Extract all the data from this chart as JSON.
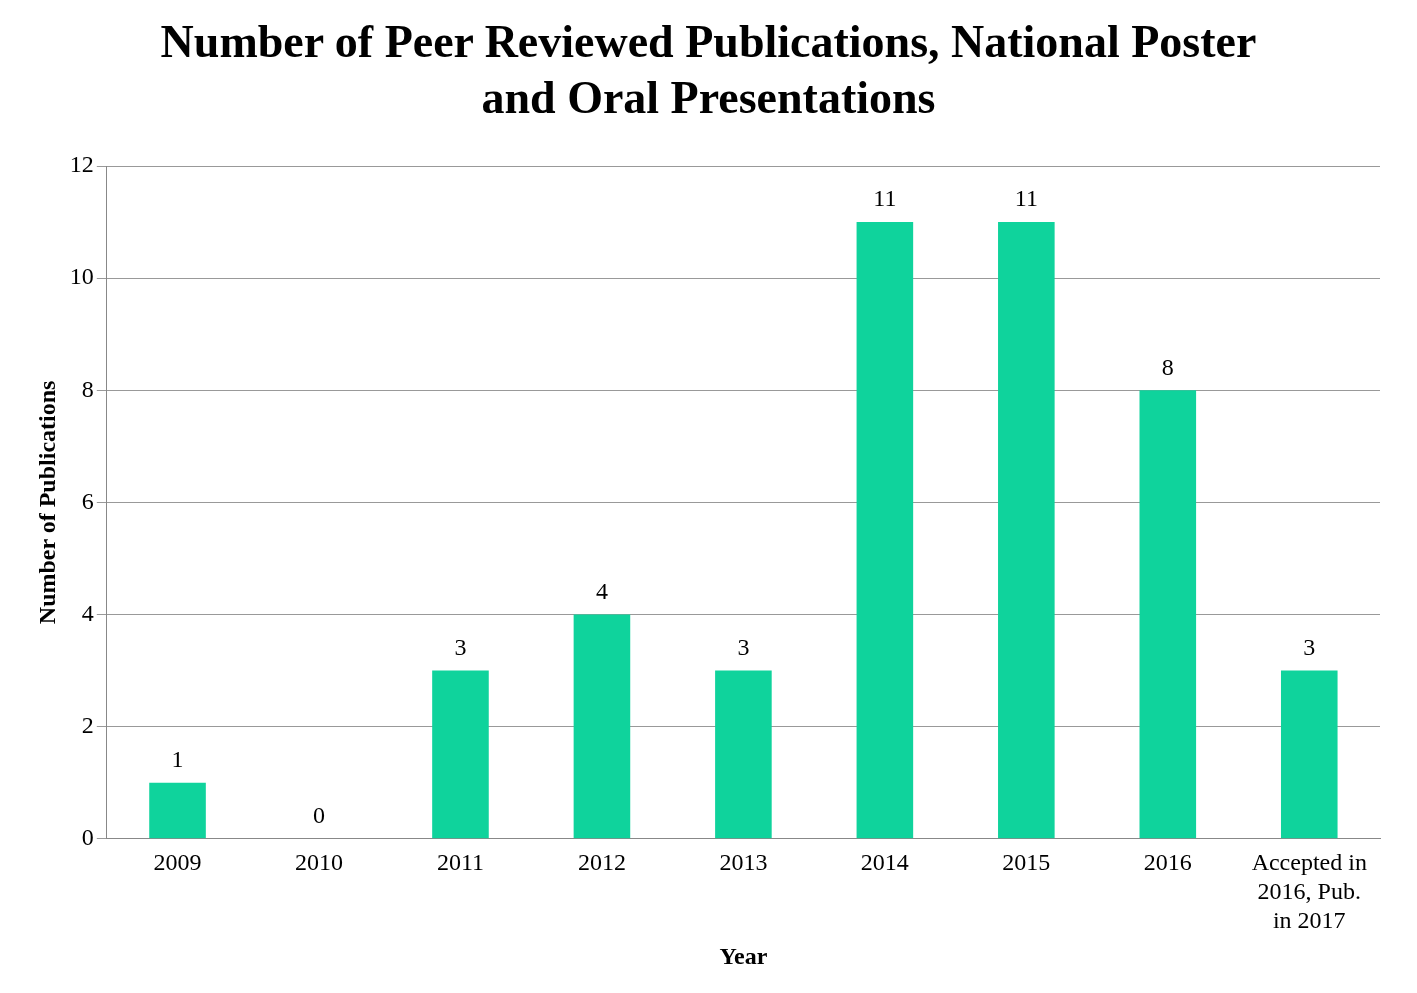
{
  "chart_data": {
    "type": "bar",
    "title": "Number of Peer Reviewed Publications, National Poster and Oral Presentations",
    "xlabel": "Year",
    "ylabel": "Number of Publications",
    "categories": [
      "2009",
      "2010",
      "2011",
      "2012",
      "2013",
      "2014",
      "2015",
      "2016",
      "Accepted in 2016, Pub. in 2017"
    ],
    "values": [
      1,
      0,
      3,
      4,
      3,
      11,
      11,
      8,
      3
    ],
    "color": "#0fd39c",
    "ylim": [
      0,
      12
    ],
    "yticks": [
      0,
      2,
      4,
      6,
      8,
      10,
      12
    ],
    "grid": "y",
    "data_labels": true
  }
}
